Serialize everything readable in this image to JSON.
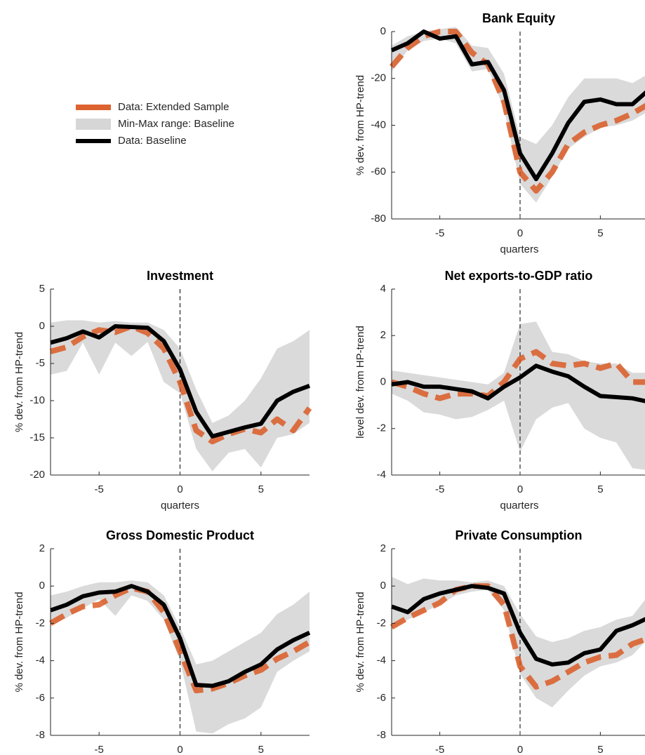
{
  "chart_data": [
    {
      "type": "line",
      "title": "Bank Equity",
      "xlabel": "quarters",
      "ylabel": "% dev. from HP-trend",
      "x": [
        -8,
        -7,
        -6,
        -5,
        -4,
        -3,
        -2,
        -1,
        0,
        1,
        2,
        3,
        4,
        5,
        6,
        7,
        8
      ],
      "xlim": [
        -8,
        8
      ],
      "xticks": [
        -5,
        0,
        5
      ],
      "ylim": [
        -80,
        0
      ],
      "yticks": [
        -80,
        -60,
        -40,
        -20,
        0
      ],
      "vline": 0,
      "series": [
        {
          "name": "Data: Extended Sample",
          "type": "line",
          "style": "dashed",
          "color": "#d95319",
          "values": [
            -15,
            -7,
            -2,
            0,
            0,
            -9,
            -14,
            -30,
            -60,
            -68,
            -60,
            -48,
            -43,
            -40,
            -38,
            -35,
            -31
          ]
        },
        {
          "name": "Min-Max range: Baseline",
          "type": "band",
          "color": "#d6d6d6",
          "lower": [
            -17,
            -8,
            -4,
            -3,
            -5,
            -17,
            -16,
            -33,
            -65,
            -73,
            -62,
            -50,
            -45,
            -41,
            -40,
            -38,
            -34
          ],
          "upper": [
            -6,
            -2,
            0,
            1,
            2,
            -6,
            -7,
            -18,
            -45,
            -48,
            -40,
            -28,
            -20,
            -20,
            -20,
            -22,
            -18
          ]
        },
        {
          "name": "Data: Baseline",
          "type": "line",
          "style": "solid",
          "color": "#000000",
          "values": [
            -8,
            -5,
            0,
            -3,
            -2,
            -14,
            -13,
            -25,
            -52,
            -63,
            -52,
            -39,
            -30,
            -29,
            -31,
            -31,
            -25
          ]
        }
      ]
    },
    {
      "type": "line",
      "title": "Investment",
      "xlabel": "quarters",
      "ylabel": "% dev. from HP-trend",
      "x": [
        -8,
        -7,
        -6,
        -5,
        -4,
        -3,
        -2,
        -1,
        0,
        1,
        2,
        3,
        4,
        5,
        6,
        7,
        8
      ],
      "xlim": [
        -8,
        8
      ],
      "xticks": [
        -5,
        0,
        5
      ],
      "ylim": [
        -20,
        5
      ],
      "yticks": [
        -20,
        -15,
        -10,
        -5,
        0,
        5
      ],
      "vline": 0,
      "series": [
        {
          "type": "line",
          "style": "dashed",
          "color": "#d95319",
          "values": [
            -3.4,
            -2.8,
            -1.4,
            -0.5,
            -0.8,
            0,
            -0.9,
            -3,
            -7.5,
            -14,
            -15.5,
            -14.5,
            -13.8,
            -14.3,
            -12.5,
            -14,
            -11
          ]
        },
        {
          "type": "band",
          "color": "#d6d6d6",
          "lower": [
            -6.5,
            -6,
            -2.2,
            -6.5,
            -2.2,
            -4,
            -2.1,
            -7.5,
            -9,
            -16.5,
            -19.5,
            -17,
            -16.5,
            -19,
            -15,
            -14.5,
            -13
          ],
          "upper": [
            0.5,
            0.8,
            0.8,
            0.5,
            0.7,
            0.5,
            0.5,
            -0.5,
            -3,
            -8.5,
            -13,
            -12,
            -10,
            -7,
            -3,
            -2,
            -0.5
          ]
        },
        {
          "type": "line",
          "style": "solid",
          "color": "#000000",
          "values": [
            -2.2,
            -1.6,
            -0.7,
            -1.5,
            0,
            -0.1,
            -0.2,
            -2,
            -5.8,
            -11.5,
            -14.8,
            -14.2,
            -13.6,
            -13.1,
            -10,
            -8.8,
            -8
          ]
        }
      ]
    },
    {
      "type": "line",
      "title": "Net exports-to-GDP ratio",
      "xlabel": "quarters",
      "ylabel": "level dev. from HP-trend",
      "x": [
        -8,
        -7,
        -6,
        -5,
        -4,
        -3,
        -2,
        -1,
        0,
        1,
        2,
        3,
        4,
        5,
        6,
        7,
        8
      ],
      "xlim": [
        -8,
        8
      ],
      "xticks": [
        -5,
        0,
        5
      ],
      "ylim": [
        -4,
        4
      ],
      "yticks": [
        -4,
        -2,
        0,
        2,
        4
      ],
      "vline": 0,
      "series": [
        {
          "type": "line",
          "style": "dashed",
          "color": "#d95319",
          "values": [
            0,
            -0.2,
            -0.5,
            -0.7,
            -0.5,
            -0.5,
            -0.6,
            0,
            1,
            1.3,
            0.8,
            0.7,
            0.8,
            0.6,
            0.8,
            0,
            0
          ]
        },
        {
          "type": "band",
          "color": "#d6d6d6",
          "lower": [
            -0.5,
            -0.8,
            -1.3,
            -1.4,
            -1.6,
            -1.5,
            -1.2,
            -0.8,
            -3,
            -1.6,
            -1.1,
            -0.9,
            -2,
            -2.4,
            -2.6,
            -3.7,
            -3.8
          ],
          "upper": [
            0.5,
            0.4,
            0.3,
            0.2,
            0.1,
            0,
            -0.1,
            0.4,
            2.5,
            2.6,
            1.3,
            1.2,
            0.9,
            0.8,
            0.8,
            0.4,
            0.4
          ]
        },
        {
          "type": "line",
          "style": "solid",
          "color": "#000000",
          "values": [
            -0.1,
            0,
            -0.2,
            -0.2,
            -0.3,
            -0.4,
            -0.7,
            -0.2,
            0.2,
            0.7,
            0.45,
            0.25,
            -0.2,
            -0.6,
            -0.65,
            -0.7,
            -0.85
          ]
        }
      ]
    },
    {
      "type": "line",
      "title": "Gross Domestic Product",
      "ylabel": "% dev. from HP-trend",
      "x": [
        -8,
        -7,
        -6,
        -5,
        -4,
        -3,
        -2,
        -1,
        0,
        1,
        2,
        3,
        4,
        5,
        6,
        7,
        8
      ],
      "xlim": [
        -8,
        8
      ],
      "xticks": [
        -5,
        0,
        5
      ],
      "ylim": [
        -8,
        2
      ],
      "yticks": [
        -8,
        -6,
        -4,
        -2,
        0,
        2
      ],
      "vline": 0,
      "series": [
        {
          "type": "line",
          "style": "dashed",
          "color": "#d95319",
          "values": [
            -2,
            -1.5,
            -1.1,
            -1,
            -0.5,
            -0.1,
            -0.3,
            -1.4,
            -3.5,
            -5.6,
            -5.5,
            -5.2,
            -4.8,
            -4.5,
            -3.9,
            -3.5,
            -3
          ]
        },
        {
          "type": "band",
          "color": "#d6d6d6",
          "lower": [
            -2.1,
            -1.7,
            -1.2,
            -0.7,
            -1.6,
            -0.5,
            -0.8,
            -1.8,
            -4,
            -7.8,
            -7.9,
            -7.4,
            -7.1,
            -6.5,
            -4.6,
            -4,
            -3.5
          ],
          "upper": [
            -0.5,
            -0.3,
            0,
            0.2,
            0.2,
            0.3,
            0.2,
            -0.5,
            -2.2,
            -4.2,
            -4,
            -3.5,
            -3,
            -2.5,
            -1.5,
            -1,
            -0.3
          ]
        },
        {
          "type": "line",
          "style": "solid",
          "color": "#000000",
          "values": [
            -1.3,
            -1,
            -0.55,
            -0.35,
            -0.3,
            0,
            -0.3,
            -1,
            -2.8,
            -5.3,
            -5.35,
            -5.1,
            -4.6,
            -4.2,
            -3.4,
            -2.9,
            -2.5
          ]
        }
      ]
    },
    {
      "type": "line",
      "title": "Private Consumption",
      "ylabel": "% dev. from HP-trend",
      "x": [
        -8,
        -7,
        -6,
        -5,
        -4,
        -3,
        -2,
        -1,
        0,
        1,
        2,
        3,
        4,
        5,
        6,
        7,
        8
      ],
      "xlim": [
        -8,
        8
      ],
      "xticks": [
        -5,
        0,
        5
      ],
      "ylim": [
        -8,
        2
      ],
      "yticks": [
        -8,
        -6,
        -4,
        -2,
        0,
        2
      ],
      "vline": 0,
      "series": [
        {
          "type": "line",
          "style": "dashed",
          "color": "#d95319",
          "values": [
            -2.2,
            -1.7,
            -1.3,
            -0.9,
            -0.2,
            0,
            0,
            -1,
            -4.3,
            -5.4,
            -5.1,
            -4.6,
            -4.1,
            -3.8,
            -3.7,
            -3.1,
            -2.8
          ]
        },
        {
          "type": "band",
          "color": "#d6d6d6",
          "lower": [
            -2.3,
            -1.8,
            -1.4,
            -1,
            -0.5,
            -0.3,
            -0.2,
            -1.3,
            -4.7,
            -6,
            -6.5,
            -5.6,
            -4.8,
            -4.3,
            -4.1,
            -3.7,
            -2.8
          ],
          "upper": [
            0.5,
            0.1,
            0.4,
            0.3,
            0.3,
            0.2,
            0.3,
            0,
            -1.5,
            -2.7,
            -3,
            -2.8,
            -2.4,
            -2.2,
            -1.8,
            -1.6,
            -0.5
          ]
        },
        {
          "type": "line",
          "style": "solid",
          "color": "#000000",
          "values": [
            -1.1,
            -1.4,
            -0.7,
            -0.4,
            -0.2,
            0,
            -0.1,
            -0.4,
            -2.5,
            -3.9,
            -4.2,
            -4.1,
            -3.6,
            -3.4,
            -2.4,
            -2.1,
            -1.7
          ]
        }
      ]
    }
  ]
}
